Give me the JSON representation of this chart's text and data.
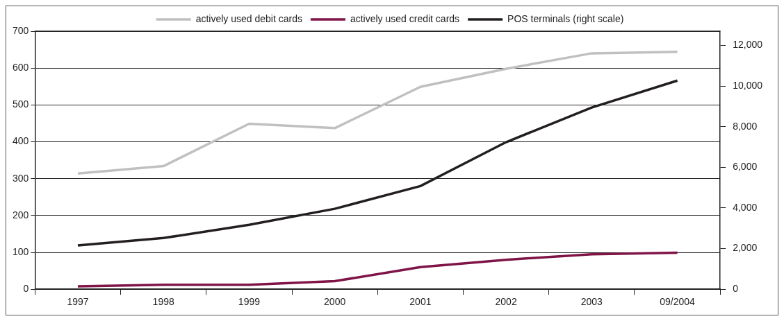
{
  "chart_data": {
    "type": "line",
    "categories": [
      "1997",
      "1998",
      "1999",
      "2000",
      "2001",
      "2002",
      "2003",
      "09/2004"
    ],
    "series": [
      {
        "name": "actively used debit cards",
        "color": "#c0c0c0",
        "values": [
          314,
          334,
          449,
          437,
          549,
          598,
          640,
          644
        ]
      },
      {
        "name": "actively used credit cards",
        "color": "#7f1447",
        "values": [
          8,
          12,
          12,
          22,
          60,
          80,
          95,
          99
        ]
      },
      {
        "name": "POS terminals (right scale)",
        "color": "#231f20",
        "axis": "y2",
        "values": [
          2160,
          2520,
          3170,
          3960,
          5080,
          7240,
          8940,
          10270
        ]
      }
    ],
    "ylim": [
      0,
      700
    ],
    "yticks": [
      0,
      100,
      200,
      300,
      400,
      500,
      600,
      700
    ],
    "y2lim": [
      0,
      12700
    ],
    "y2ticks": [
      {
        "value": 0,
        "label": "0"
      },
      {
        "value": 2000,
        "label": "2,000"
      },
      {
        "value": 4000,
        "label": "4,000"
      },
      {
        "value": 6000,
        "label": "6,000"
      },
      {
        "value": 8000,
        "label": "8,000"
      },
      {
        "value": 10000,
        "label": "10,000"
      },
      {
        "value": 12000,
        "label": "12,000"
      }
    ],
    "grid": "y",
    "legend": "top",
    "marker": "none",
    "line_style": "solid"
  }
}
